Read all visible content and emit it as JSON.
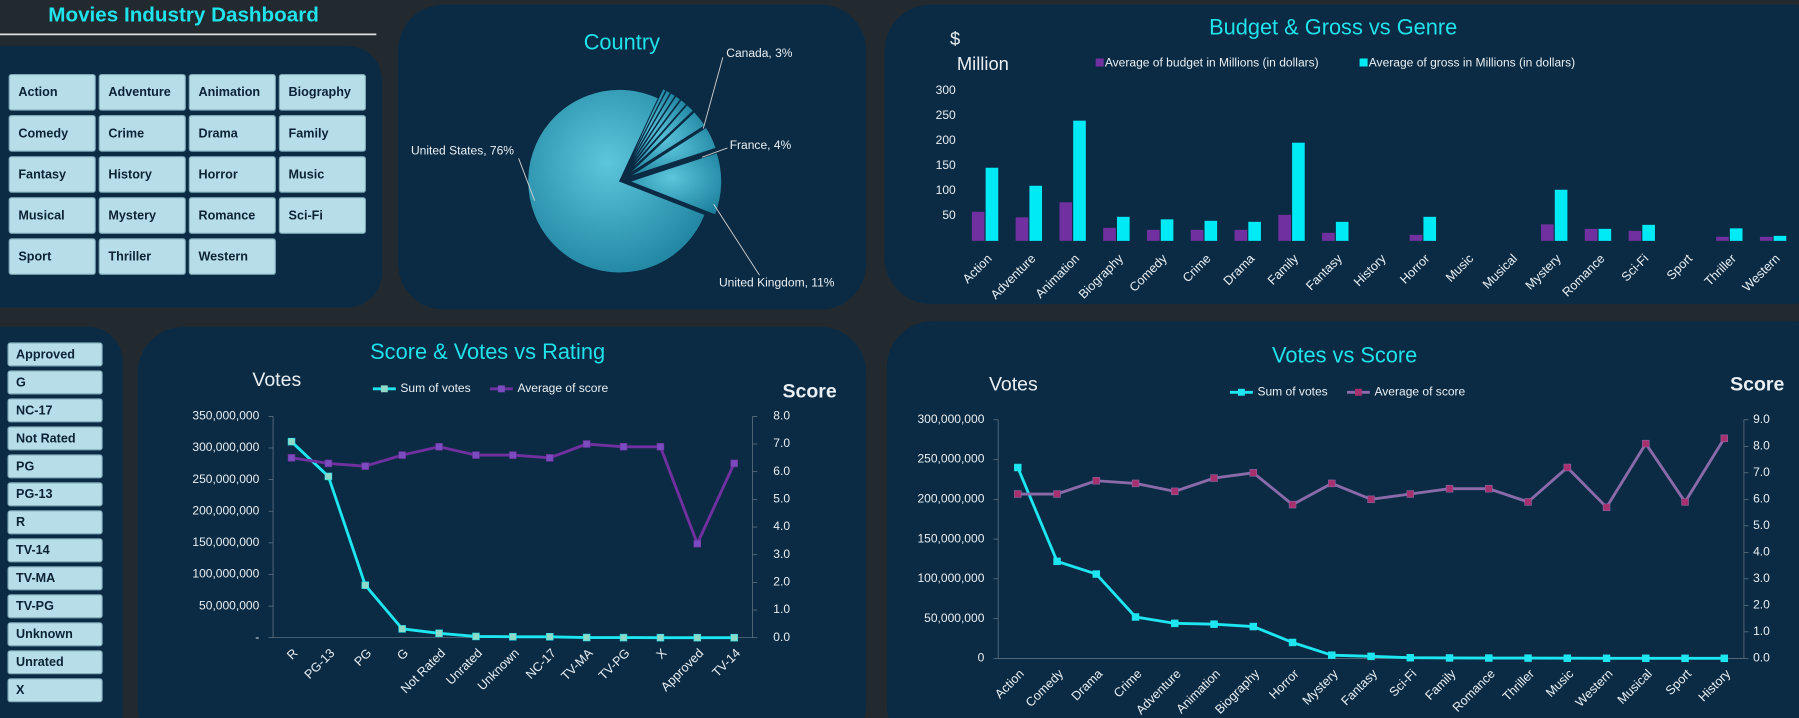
{
  "title": "Movies Industry Dashboard",
  "genre_filters": [
    "Action",
    "Adventure",
    "Animation",
    "Biography",
    "Comedy",
    "Crime",
    "Drama",
    "Family",
    "Fantasy",
    "History",
    "Horror",
    "Music",
    "Musical",
    "Mystery",
    "Romance",
    "Sci-Fi",
    "Sport",
    "Thriller",
    "Western"
  ],
  "rating_filters": [
    "Approved",
    "G",
    "NC-17",
    "Not Rated",
    "PG",
    "PG-13",
    "R",
    "TV-14",
    "TV-MA",
    "TV-PG",
    "Unknown",
    "Unrated",
    "X"
  ],
  "chart_data": [
    {
      "type": "pie",
      "title": "Country",
      "values": [
        76,
        11,
        4,
        3,
        1.5,
        1.2,
        1,
        0.9,
        0.8,
        0.6
      ],
      "value_labels": [
        "United States, 76%",
        "United Kingdom, 11%",
        "France, 4%",
        "Canada, 3%",
        null,
        null,
        null,
        null,
        null,
        null
      ],
      "color": "#2ea3c0"
    },
    {
      "type": "bar",
      "title": "Budget & Gross vs Genre",
      "ylabel": [
        "$",
        "Million"
      ],
      "categories": [
        "Action",
        "Adventure",
        "Animation",
        "Biography",
        "Comedy",
        "Crime",
        "Drama",
        "Family",
        "Fantasy",
        "History",
        "Horror",
        "Music",
        "Musical",
        "Mystery",
        "Romance",
        "Sci-Fi",
        "Sport",
        "Thriller",
        "Western"
      ],
      "series": [
        {
          "name": "Average of budget in Millions (in dollars)",
          "color": "#7030a0",
          "values": [
            58,
            47,
            77,
            26,
            22,
            22,
            22,
            52,
            16,
            0,
            12,
            0,
            0,
            33,
            24,
            20,
            0,
            8,
            8
          ]
        },
        {
          "name": "Average of gross in Millions (in dollars)",
          "color": "#00eaf6",
          "values": [
            146,
            110,
            240,
            48,
            43,
            40,
            38,
            196,
            38,
            0,
            48,
            0,
            0,
            102,
            24,
            32,
            0,
            25,
            10
          ]
        }
      ],
      "ylim": [
        0,
        300
      ],
      "yticks": [
        50,
        100,
        150,
        200,
        250,
        300
      ],
      "legend": "top"
    },
    {
      "type": "line",
      "title": "Score & Votes vs Rating",
      "ylabel": "Votes",
      "y2label": "Score",
      "categories": [
        "R",
        "PG-13",
        "PG",
        "G",
        "Not Rated",
        "Unrated",
        "Unknown",
        "NC-17",
        "TV-MA",
        "TV-PG",
        "X",
        "Approved",
        "TV-14"
      ],
      "series": [
        {
          "name": "Sum of votes",
          "color": "#1ee6f0",
          "marker_color": "#8fd9c8",
          "values": [
            310000000,
            255000000,
            83000000,
            14000000,
            7000000,
            2000000,
            1500000,
            1500000,
            300000,
            200000,
            100000,
            100000,
            50000
          ]
        },
        {
          "name": "Average of score",
          "color": "#7030a0",
          "marker_color": "#7a4cc0",
          "axis": "y2",
          "values": [
            6.5,
            6.3,
            6.2,
            6.6,
            6.9,
            6.6,
            6.6,
            6.5,
            7.0,
            6.9,
            6.9,
            3.4,
            6.3
          ]
        }
      ],
      "ylim": [
        0,
        350000000
      ],
      "yticks": [
        {
          "value": 0,
          "label": "-"
        },
        {
          "value": 50000000,
          "label": "50,000,000"
        },
        {
          "value": 100000000,
          "label": "100,000,000"
        },
        {
          "value": 150000000,
          "label": "150,000,000"
        },
        {
          "value": 200000000,
          "label": "200,000,000"
        },
        {
          "value": 250000000,
          "label": "250,000,000"
        },
        {
          "value": 300000000,
          "label": "300,000,000"
        },
        {
          "value": 350000000,
          "label": "350,000,000"
        }
      ],
      "y2lim": [
        0,
        8
      ],
      "y2ticks": [
        {
          "value": 0,
          "label": "0.0"
        },
        {
          "value": 1,
          "label": "1.0"
        },
        {
          "value": 2,
          "label": "2.0"
        },
        {
          "value": 3,
          "label": "3.0"
        },
        {
          "value": 4,
          "label": "4.0"
        },
        {
          "value": 5,
          "label": "5.0"
        },
        {
          "value": 6,
          "label": "6.0"
        },
        {
          "value": 7,
          "label": "7.0"
        },
        {
          "value": 8,
          "label": "8.0"
        }
      ],
      "legend": "top"
    },
    {
      "type": "line",
      "title": "Votes vs Score",
      "ylabel": "Votes",
      "y2label": "Score",
      "categories": [
        "Action",
        "Comedy",
        "Drama",
        "Crime",
        "Adventure",
        "Animation",
        "Biography",
        "Horror",
        "Mystery",
        "Fantasy",
        "Sci-Fi",
        "Family",
        "Romance",
        "Thriller",
        "Music",
        "Western",
        "Musical",
        "Sport",
        "History"
      ],
      "series": [
        {
          "name": "Sum of votes",
          "color": "#1ee6f0",
          "marker_color": "#1ee6f0",
          "values": [
            240000000,
            122000000,
            106000000,
            52000000,
            44000000,
            43000000,
            40000000,
            20000000,
            4000000,
            2500000,
            800000,
            500000,
            400000,
            300000,
            200000,
            100000,
            100000,
            50000,
            50000
          ]
        },
        {
          "name": "Average of score",
          "color": "#8a6aa8",
          "marker_color": "#a8306f",
          "axis": "y2",
          "values": [
            6.2,
            6.2,
            6.7,
            6.6,
            6.3,
            6.8,
            7.0,
            5.8,
            6.6,
            6.0,
            6.2,
            6.4,
            6.4,
            5.9,
            7.2,
            5.7,
            8.1,
            5.9,
            8.3
          ]
        }
      ],
      "ylim": [
        0,
        300000000
      ],
      "yticks": [
        0,
        {
          "value": 50000000,
          "label": "50,000,000"
        },
        {
          "value": 100000000,
          "label": "100,000,000"
        },
        {
          "value": 150000000,
          "label": "150,000,000"
        },
        {
          "value": 200000000,
          "label": "200,000,000"
        },
        {
          "value": 250000000,
          "label": "250,000,000"
        },
        {
          "value": 300000000,
          "label": "300,000,000"
        }
      ],
      "y2lim": [
        0,
        9
      ],
      "y2ticks": [
        {
          "value": 0,
          "label": "0.0"
        },
        {
          "value": 1,
          "label": "1.0"
        },
        {
          "value": 2,
          "label": "2.0"
        },
        {
          "value": 3,
          "label": "3.0"
        },
        {
          "value": 4,
          "label": "4.0"
        },
        {
          "value": 5,
          "label": "5.0"
        },
        {
          "value": 6,
          "label": "6.0"
        },
        {
          "value": 7,
          "label": "7.0"
        },
        {
          "value": 8,
          "label": "8.0"
        },
        {
          "value": 9,
          "label": "9.0"
        }
      ],
      "legend": "top"
    }
  ]
}
